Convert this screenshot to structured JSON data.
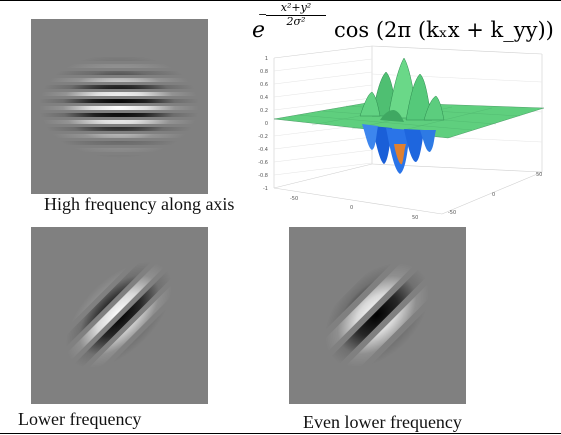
{
  "formula": {
    "base": "e",
    "exponent_sign": "−",
    "exponent_numerator": "x²+y²",
    "exponent_denominator": "2σ²",
    "cos_term": "cos (2π (kₓx + k_yy))"
  },
  "captions": {
    "high": "High frequency along axis",
    "lower": "Lower frequency",
    "even_lower": "Even lower frequency"
  },
  "plot": {
    "yticks": [
      "1",
      "0.8",
      "0.6",
      "0.4",
      "0.2",
      "0",
      "-0.2",
      "-0.4",
      "-0.6",
      "-0.8",
      "-1"
    ],
    "xticks": [
      "-50",
      "0",
      "50"
    ],
    "zticks": [
      "50",
      "0",
      "-50"
    ]
  },
  "colors": {
    "surface_green": "#58c878",
    "surface_dark": "#2e8a50",
    "valley_blue": "#1a5fd8",
    "valley_orange": "#e08030",
    "patch_gray": "#808080"
  }
}
